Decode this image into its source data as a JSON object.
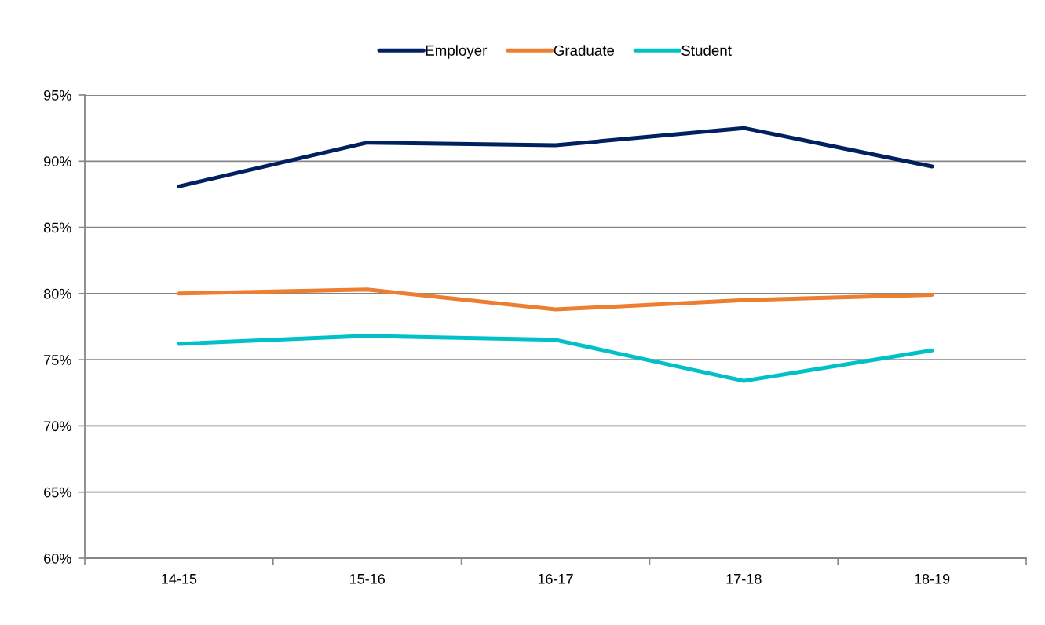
{
  "chart_data": {
    "type": "line",
    "categories": [
      "14-15",
      "15-16",
      "16-17",
      "17-18",
      "18-19"
    ],
    "series": [
      {
        "name": "Employer",
        "color": "#002060",
        "values": [
          88.1,
          91.4,
          91.2,
          92.5,
          89.6
        ]
      },
      {
        "name": "Graduate",
        "color": "#ed7d31",
        "values": [
          80.0,
          80.3,
          78.8,
          79.5,
          79.9
        ]
      },
      {
        "name": "Student",
        "color": "#00c0c8",
        "values": [
          76.2,
          76.8,
          76.5,
          73.4,
          75.7
        ]
      }
    ],
    "ylim": [
      60,
      95
    ],
    "yticks": [
      {
        "value": 60,
        "label": "60%"
      },
      {
        "value": 65,
        "label": "65%"
      },
      {
        "value": 70,
        "label": "70%"
      },
      {
        "value": 75,
        "label": "75%"
      },
      {
        "value": 80,
        "label": "80%"
      },
      {
        "value": 85,
        "label": "85%"
      },
      {
        "value": 90,
        "label": "90%"
      },
      {
        "value": 95,
        "label": "95%"
      }
    ],
    "grid": "y",
    "legend": "top",
    "line_style": "solid"
  }
}
